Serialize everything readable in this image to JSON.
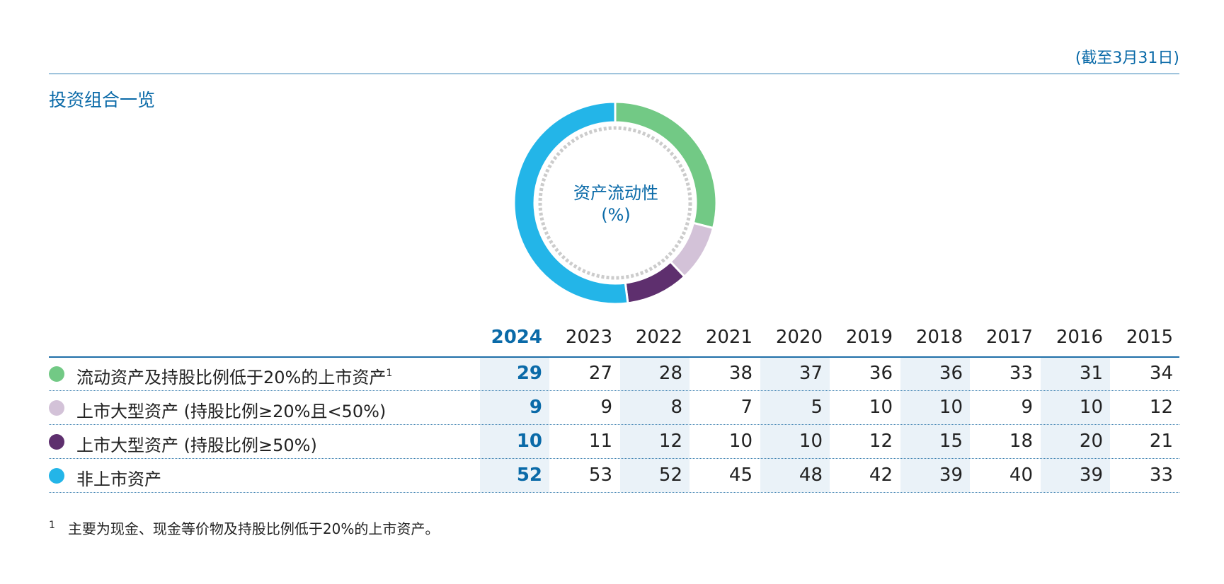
{
  "as_of": "(截至3月31日)",
  "section_title": "投资组合一览",
  "center_label": {
    "line1": "资产流动性",
    "line2": "(%)"
  },
  "footnote": {
    "mark": "1",
    "text": "主要为现金、现金等价物及持股比例低于20%的上市资产。"
  },
  "colors": {
    "liquid": "#72c985",
    "listed_20_50": "#d3c2d8",
    "listed_50": "#5e2f6e",
    "unlisted": "#23b5e8",
    "accent": "#0a6aa8"
  },
  "chart_data": {
    "type": "table",
    "donut_year": "2024",
    "years": [
      "2024",
      "2023",
      "2022",
      "2021",
      "2020",
      "2019",
      "2018",
      "2017",
      "2016",
      "2015"
    ],
    "rows": [
      {
        "label": "流动资产及持股比例低于20%的上市资产",
        "sup": "1",
        "color": "#72c985",
        "values": [
          29,
          27,
          28,
          38,
          37,
          36,
          36,
          33,
          31,
          34
        ]
      },
      {
        "label": "上市大型资产 (持股比例≥20%且<50%)",
        "sup": "",
        "color": "#d3c2d8",
        "values": [
          9,
          9,
          8,
          7,
          5,
          10,
          10,
          9,
          10,
          12
        ]
      },
      {
        "label": "上市大型资产 (持股比例≥50%)",
        "sup": "",
        "color": "#5e2f6e",
        "values": [
          10,
          11,
          12,
          10,
          10,
          12,
          15,
          18,
          20,
          21
        ]
      },
      {
        "label": "非上市资产",
        "sup": "",
        "color": "#23b5e8",
        "values": [
          52,
          53,
          52,
          45,
          48,
          42,
          39,
          40,
          39,
          33
        ]
      }
    ]
  }
}
